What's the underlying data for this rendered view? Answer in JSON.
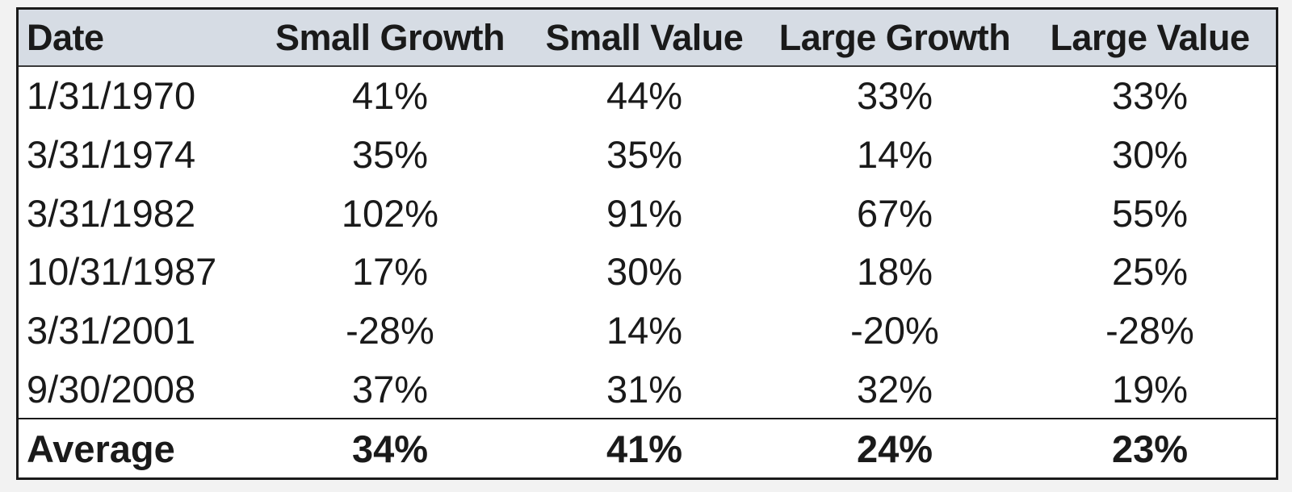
{
  "chart_data": {
    "type": "table",
    "columns": [
      "Date",
      "Small Growth",
      "Small Value",
      "Large Growth",
      "Large Value"
    ],
    "rows": [
      [
        "1/31/1970",
        "41%",
        "44%",
        "33%",
        "33%"
      ],
      [
        "3/31/1974",
        "35%",
        "35%",
        "14%",
        "30%"
      ],
      [
        "3/31/1982",
        "102%",
        "91%",
        "67%",
        "55%"
      ],
      [
        "10/31/1987",
        "17%",
        "30%",
        "18%",
        "25%"
      ],
      [
        "3/31/2001",
        "-28%",
        "14%",
        "-20%",
        "-28%"
      ],
      [
        "9/30/2008",
        "37%",
        "31%",
        "32%",
        "19%"
      ]
    ],
    "summary_row": [
      "Average",
      "34%",
      "41%",
      "24%",
      "23%"
    ],
    "header_background": "#d6dce4"
  }
}
